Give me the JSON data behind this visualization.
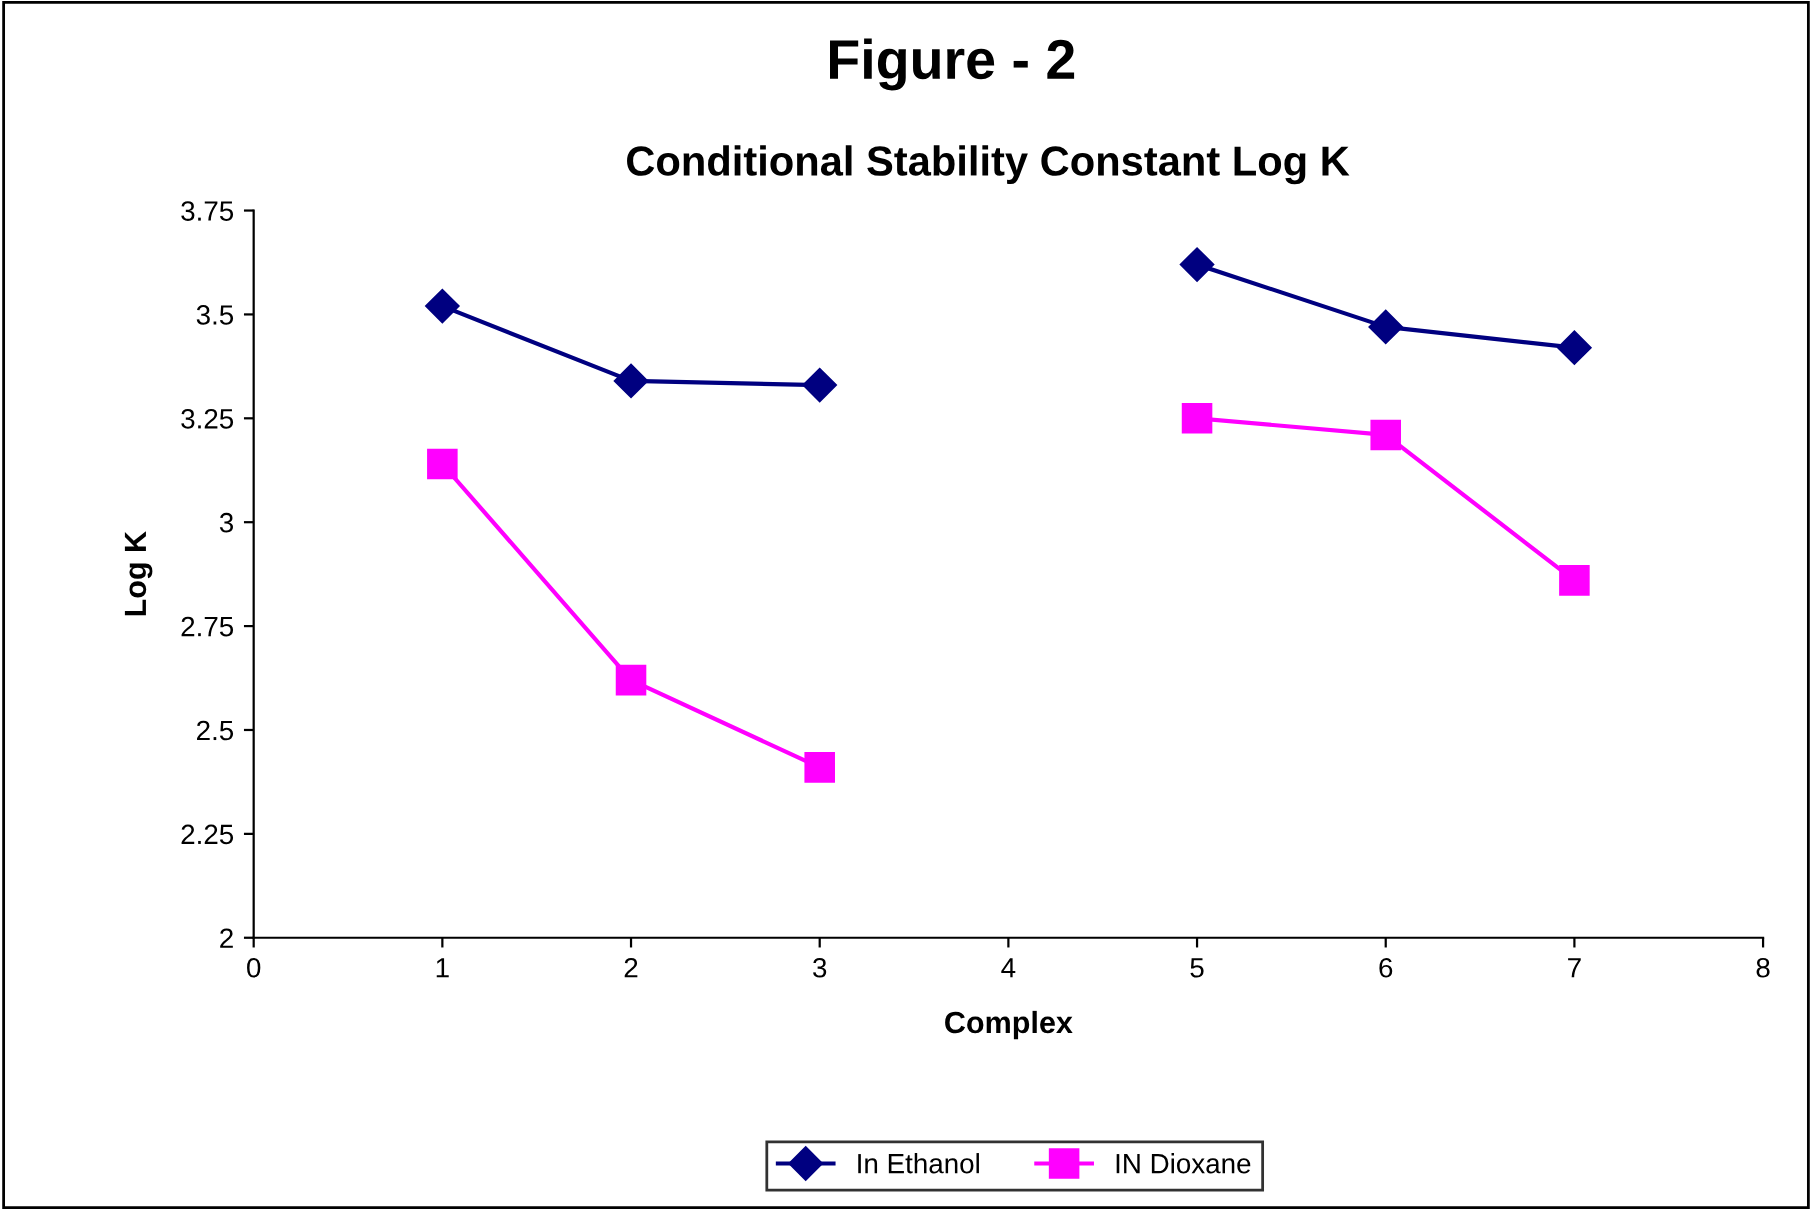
{
  "chart_data": {
    "type": "line",
    "title": "Figure - 2",
    "subtitle": "Conditional Stability Constant Log K",
    "xlabel": "Complex",
    "ylabel": "Log K",
    "x": [
      1,
      2,
      3,
      4,
      5,
      6,
      7
    ],
    "series": [
      {
        "name": "In Ethanol",
        "color": "#000080",
        "marker": "diamond",
        "values": [
          3.52,
          3.34,
          3.33,
          null,
          3.62,
          3.47,
          3.42
        ]
      },
      {
        "name": "IN Dioxane",
        "color": "#ff00ff",
        "marker": "square",
        "values": [
          3.14,
          2.62,
          2.41,
          null,
          3.25,
          3.21,
          2.86
        ]
      }
    ],
    "xlim": [
      0,
      8
    ],
    "xticks": [
      0,
      1,
      2,
      3,
      4,
      5,
      6,
      7,
      8
    ],
    "ylim": [
      2,
      3.75
    ],
    "yticks": [
      2,
      2.25,
      2.5,
      2.75,
      3,
      3.25,
      3.5,
      3.75
    ],
    "grid": false,
    "legend": "bottom",
    "line_style": "solid"
  }
}
